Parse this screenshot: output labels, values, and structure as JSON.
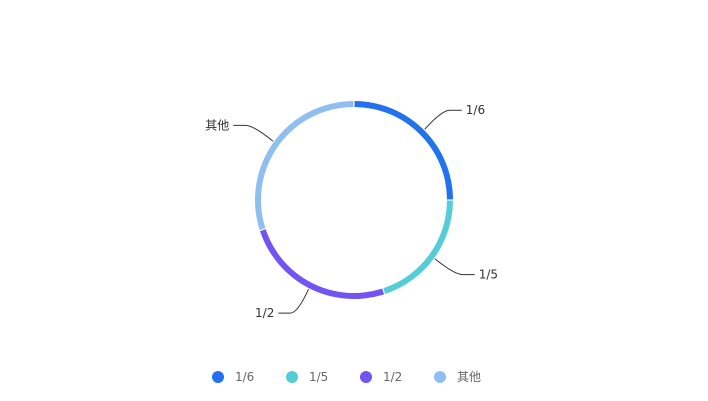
{
  "chart_data": {
    "type": "pie",
    "variant": "donut",
    "title": "",
    "slices": [
      {
        "label": "1/6",
        "value": 0.25,
        "color": "#2271ee"
      },
      {
        "label": "1/5",
        "value": 0.2,
        "color": "#54cdd9"
      },
      {
        "label": "1/2",
        "value": 0.25,
        "color": "#7254f3"
      },
      {
        "label": "其他",
        "value": 0.3,
        "color": "#90bef1"
      }
    ],
    "start_angle": "top",
    "direction": "clockwise",
    "legend": {
      "position": "bottom",
      "items": [
        "1/6",
        "1/5",
        "1/2",
        "其他"
      ]
    }
  }
}
